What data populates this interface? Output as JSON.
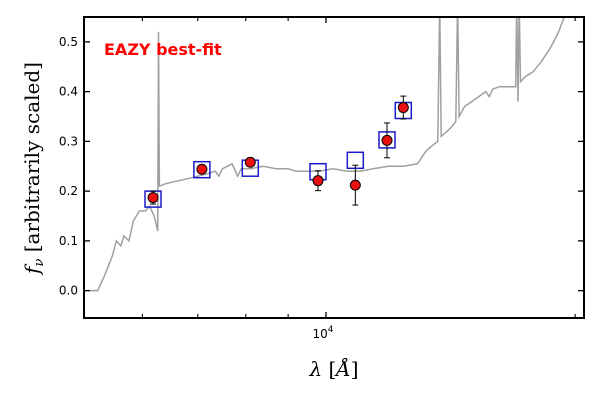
{
  "chart_data": {
    "type": "scatter",
    "title": "",
    "annotation": {
      "text": "EAZY best-fit",
      "color": "#ff0000"
    },
    "xlabel": {
      "sym": "λ",
      "open": " [",
      "unit": "Å",
      "close": "]"
    },
    "ylabel": {
      "sym": "f",
      "sub": "ν",
      "rest": " [arbitrarily scaled]"
    },
    "xscale": "log",
    "xlim": [
      5100,
      20500
    ],
    "ylim": [
      -0.055,
      0.55
    ],
    "yticks": [
      {
        "v": 0.0,
        "label": "0.0"
      },
      {
        "v": 0.1,
        "label": "0.1"
      },
      {
        "v": 0.2,
        "label": "0.2"
      },
      {
        "v": 0.3,
        "label": "0.3"
      },
      {
        "v": 0.4,
        "label": "0.4"
      },
      {
        "v": 0.5,
        "label": "0.5"
      }
    ],
    "xtick_major": {
      "v": 10000,
      "base": "10",
      "exp": "4"
    },
    "xticks_minor": [
      6000,
      7000,
      8000,
      9000,
      20000
    ],
    "colors": {
      "template": "#a0a0a0",
      "model": "#1a1acc",
      "obs_fill": "#e81010",
      "obs_edge": "#000000"
    },
    "series": [
      {
        "style": "line",
        "points": [
          [
            5100,
            0.0
          ],
          [
            5300,
            0.0
          ],
          [
            5400,
            0.03
          ],
          [
            5520,
            0.07
          ],
          [
            5580,
            0.1
          ],
          [
            5650,
            0.09
          ],
          [
            5700,
            0.11
          ],
          [
            5780,
            0.1
          ],
          [
            5850,
            0.14
          ],
          [
            5950,
            0.16
          ],
          [
            6050,
            0.16
          ],
          [
            6120,
            0.17
          ],
          [
            6200,
            0.15
          ],
          [
            6260,
            0.12
          ],
          [
            6275,
            0.52
          ],
          [
            6290,
            0.21
          ],
          [
            6400,
            0.215
          ],
          [
            6600,
            0.22
          ],
          [
            6800,
            0.225
          ],
          [
            7000,
            0.23
          ],
          [
            7200,
            0.235
          ],
          [
            7350,
            0.24
          ],
          [
            7420,
            0.23
          ],
          [
            7500,
            0.245
          ],
          [
            7700,
            0.255
          ],
          [
            7820,
            0.23
          ],
          [
            7900,
            0.245
          ],
          [
            8100,
            0.245
          ],
          [
            8400,
            0.25
          ],
          [
            8700,
            0.245
          ],
          [
            9000,
            0.245
          ],
          [
            9200,
            0.24
          ],
          [
            9500,
            0.24
          ],
          [
            9800,
            0.24
          ],
          [
            10200,
            0.245
          ],
          [
            10600,
            0.24
          ],
          [
            11000,
            0.24
          ],
          [
            11400,
            0.245
          ],
          [
            11900,
            0.25
          ],
          [
            12400,
            0.25
          ],
          [
            12900,
            0.255
          ],
          [
            13200,
            0.28
          ],
          [
            13400,
            0.29
          ],
          [
            13650,
            0.3
          ],
          [
            13720,
            0.58
          ],
          [
            13780,
            0.31
          ],
          [
            14000,
            0.32
          ],
          [
            14200,
            0.33
          ],
          [
            14350,
            0.34
          ],
          [
            14420,
            0.58
          ],
          [
            14480,
            0.35
          ],
          [
            14700,
            0.37
          ],
          [
            15000,
            0.38
          ],
          [
            15300,
            0.39
          ],
          [
            15600,
            0.4
          ],
          [
            15750,
            0.39
          ],
          [
            15900,
            0.405
          ],
          [
            16200,
            0.41
          ],
          [
            16600,
            0.41
          ],
          [
            16950,
            0.41
          ],
          [
            17000,
            0.58
          ],
          [
            17060,
            0.38
          ],
          [
            17120,
            0.58
          ],
          [
            17180,
            0.42
          ],
          [
            17400,
            0.43
          ],
          [
            17800,
            0.44
          ],
          [
            18200,
            0.46
          ],
          [
            18700,
            0.49
          ],
          [
            19100,
            0.52
          ],
          [
            19400,
            0.55
          ],
          [
            20500,
            0.58
          ]
        ]
      },
      {
        "style": "open-square",
        "points": [
          [
            6180,
            0.184
          ],
          [
            7080,
            0.243
          ],
          [
            8100,
            0.246
          ],
          [
            9780,
            0.239
          ],
          [
            10850,
            0.262
          ],
          [
            11850,
            0.303
          ],
          [
            12400,
            0.362
          ]
        ]
      },
      {
        "style": "filled-circle-errorbar",
        "points": [
          {
            "x": 6180,
            "y": 0.187,
            "err": 0.013
          },
          {
            "x": 7080,
            "y": 0.244,
            "err": 0.007
          },
          {
            "x": 8100,
            "y": 0.258,
            "err": 0.006
          },
          {
            "x": 9780,
            "y": 0.221,
            "err": 0.02
          },
          {
            "x": 10850,
            "y": 0.212,
            "err": 0.04
          },
          {
            "x": 11850,
            "y": 0.302,
            "err": 0.035
          },
          {
            "x": 12400,
            "y": 0.368,
            "err": 0.023
          }
        ]
      }
    ]
  }
}
